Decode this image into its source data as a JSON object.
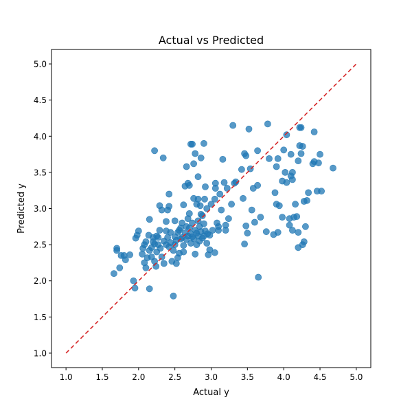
{
  "chart_data": {
    "type": "scatter",
    "title": "Actual vs Predicted",
    "xlabel": "Actual y",
    "ylabel": "Predicted y",
    "xlim": [
      0.8,
      5.2
    ],
    "ylim": [
      0.8,
      5.2
    ],
    "xticks": [
      "1.0",
      "1.5",
      "2.0",
      "2.5",
      "3.0",
      "3.5",
      "4.0",
      "4.5",
      "5.0"
    ],
    "yticks": [
      "1.0",
      "1.5",
      "2.0",
      "2.5",
      "3.0",
      "3.5",
      "4.0",
      "4.5",
      "5.0"
    ],
    "grid": false,
    "point_color": "#1f77b4",
    "reference_line": {
      "from": [
        1.0,
        1.0
      ],
      "to": [
        5.0,
        5.0
      ],
      "color": "#d62728",
      "style": "dashed"
    },
    "points": [
      [
        1.66,
        2.1
      ],
      [
        1.7,
        2.45
      ],
      [
        1.7,
        2.42
      ],
      [
        1.74,
        2.18
      ],
      [
        1.76,
        2.35
      ],
      [
        1.8,
        2.35
      ],
      [
        1.82,
        2.29
      ],
      [
        1.88,
        2.36
      ],
      [
        1.93,
        2.0
      ],
      [
        1.95,
        1.9
      ],
      [
        1.96,
        2.59
      ],
      [
        1.98,
        2.63
      ],
      [
        2.0,
        2.69
      ],
      [
        2.05,
        2.37
      ],
      [
        2.06,
        2.45
      ],
      [
        2.08,
        2.5
      ],
      [
        2.08,
        2.25
      ],
      [
        2.1,
        2.54
      ],
      [
        2.1,
        2.18
      ],
      [
        2.12,
        2.32
      ],
      [
        2.14,
        2.63
      ],
      [
        2.15,
        2.42
      ],
      [
        2.15,
        2.85
      ],
      [
        2.15,
        1.89
      ],
      [
        2.18,
        2.46
      ],
      [
        2.18,
        2.33
      ],
      [
        2.2,
        2.6
      ],
      [
        2.22,
        3.8
      ],
      [
        2.2,
        2.54
      ],
      [
        2.22,
        2.27
      ],
      [
        2.22,
        2.51
      ],
      [
        2.24,
        2.2
      ],
      [
        2.25,
        2.62
      ],
      [
        2.25,
        2.4
      ],
      [
        2.27,
        2.5
      ],
      [
        2.27,
        2.6
      ],
      [
        2.29,
        3.04
      ],
      [
        2.29,
        2.7
      ],
      [
        2.3,
        2.45
      ],
      [
        2.32,
        2.33
      ],
      [
        2.32,
        2.98
      ],
      [
        2.34,
        3.7
      ],
      [
        2.35,
        2.55
      ],
      [
        2.35,
        2.24
      ],
      [
        2.38,
        2.69
      ],
      [
        2.38,
        2.5
      ],
      [
        2.38,
        2.82
      ],
      [
        2.4,
        2.98
      ],
      [
        2.4,
        2.6
      ],
      [
        2.42,
        3.2
      ],
      [
        2.42,
        3.03
      ],
      [
        2.42,
        2.47
      ],
      [
        2.44,
        2.53
      ],
      [
        2.44,
        2.67
      ],
      [
        2.46,
        2.27
      ],
      [
        2.48,
        2.42
      ],
      [
        2.48,
        1.79
      ],
      [
        2.5,
        2.61
      ],
      [
        2.5,
        2.83
      ],
      [
        2.5,
        2.5
      ],
      [
        2.52,
        2.24
      ],
      [
        2.52,
        2.56
      ],
      [
        2.54,
        2.67
      ],
      [
        2.54,
        2.32
      ],
      [
        2.56,
        2.7
      ],
      [
        2.56,
        2.38
      ],
      [
        2.58,
        2.73
      ],
      [
        2.58,
        2.58
      ],
      [
        2.6,
        2.8
      ],
      [
        2.6,
        2.6
      ],
      [
        2.62,
        3.05
      ],
      [
        2.62,
        2.49
      ],
      [
        2.62,
        2.4
      ],
      [
        2.64,
        3.31
      ],
      [
        2.64,
        2.66
      ],
      [
        2.66,
        2.75
      ],
      [
        2.66,
        2.57
      ],
      [
        2.66,
        3.58
      ],
      [
        2.68,
        3.35
      ],
      [
        2.68,
        2.86
      ],
      [
        2.68,
        2.62
      ],
      [
        2.7,
        2.93
      ],
      [
        2.7,
        2.73
      ],
      [
        2.7,
        3.32
      ],
      [
        2.72,
        2.65
      ],
      [
        2.72,
        2.52
      ],
      [
        2.72,
        3.89
      ],
      [
        2.74,
        3.89
      ],
      [
        2.74,
        2.8
      ],
      [
        2.74,
        2.61
      ],
      [
        2.76,
        3.14
      ],
      [
        2.76,
        2.58
      ],
      [
        2.76,
        3.62
      ],
      [
        2.78,
        2.7
      ],
      [
        2.78,
        2.37
      ],
      [
        2.78,
        3.76
      ],
      [
        2.8,
        2.5
      ],
      [
        2.8,
        2.66
      ],
      [
        2.8,
        3.06
      ],
      [
        2.82,
        2.83
      ],
      [
        2.82,
        2.62
      ],
      [
        2.82,
        3.44
      ],
      [
        2.82,
        3.13
      ],
      [
        2.84,
        2.75
      ],
      [
        2.84,
        2.55
      ],
      [
        2.85,
        3.04
      ],
      [
        2.86,
        2.92
      ],
      [
        2.86,
        2.68
      ],
      [
        2.86,
        3.7
      ],
      [
        2.88,
        2.59
      ],
      [
        2.88,
        2.9
      ],
      [
        2.9,
        2.79
      ],
      [
        2.9,
        2.62
      ],
      [
        2.9,
        3.9
      ],
      [
        2.91,
        3.13
      ],
      [
        2.92,
        3.3
      ],
      [
        2.92,
        2.69
      ],
      [
        2.94,
        2.52
      ],
      [
        2.94,
        3.0
      ],
      [
        2.95,
        2.65
      ],
      [
        2.96,
        2.36
      ],
      [
        2.98,
        2.43
      ],
      [
        2.98,
        2.63
      ],
      [
        3.0,
        3.06
      ],
      [
        3.02,
        2.7
      ],
      [
        3.05,
        3.13
      ],
      [
        3.05,
        2.39
      ],
      [
        3.06,
        3.28
      ],
      [
        3.06,
        3.35
      ],
      [
        3.08,
        2.8
      ],
      [
        3.1,
        2.75
      ],
      [
        3.1,
        2.7
      ],
      [
        3.12,
        3.2
      ],
      [
        3.14,
        2.98
      ],
      [
        3.16,
        3.68
      ],
      [
        3.18,
        3.36
      ],
      [
        3.2,
        2.77
      ],
      [
        3.2,
        2.7
      ],
      [
        3.22,
        3.28
      ],
      [
        3.24,
        2.86
      ],
      [
        3.28,
        3.06
      ],
      [
        3.3,
        4.15
      ],
      [
        3.32,
        3.35
      ],
      [
        3.34,
        3.37
      ],
      [
        3.42,
        3.54
      ],
      [
        3.44,
        3.14
      ],
      [
        3.46,
        3.76
      ],
      [
        3.46,
        2.51
      ],
      [
        3.48,
        3.73
      ],
      [
        3.48,
        2.76
      ],
      [
        3.5,
        2.66
      ],
      [
        3.52,
        4.1
      ],
      [
        3.54,
        3.55
      ],
      [
        3.56,
        2.98
      ],
      [
        3.58,
        3.28
      ],
      [
        3.6,
        2.81
      ],
      [
        3.64,
        3.32
      ],
      [
        3.64,
        3.8
      ],
      [
        3.65,
        2.05
      ],
      [
        3.68,
        2.88
      ],
      [
        3.76,
        2.68
      ],
      [
        3.78,
        4.17
      ],
      [
        3.8,
        3.69
      ],
      [
        3.86,
        2.64
      ],
      [
        3.88,
        3.22
      ],
      [
        3.9,
        3.58
      ],
      [
        3.9,
        3.06
      ],
      [
        3.92,
        2.67
      ],
      [
        3.92,
        3.69
      ],
      [
        3.94,
        3.04
      ],
      [
        3.98,
        3.38
      ],
      [
        3.98,
        2.88
      ],
      [
        4.0,
        3.81
      ],
      [
        4.02,
        3.5
      ],
      [
        4.04,
        4.02
      ],
      [
        4.04,
        3.36
      ],
      [
        4.08,
        2.86
      ],
      [
        4.08,
        2.77
      ],
      [
        4.1,
        3.75
      ],
      [
        4.1,
        3.45
      ],
      [
        4.12,
        2.7
      ],
      [
        4.12,
        3.5
      ],
      [
        4.12,
        3.4
      ],
      [
        4.14,
        2.88
      ],
      [
        4.16,
        3.06
      ],
      [
        4.18,
        2.89
      ],
      [
        4.2,
        3.66
      ],
      [
        4.2,
        2.67
      ],
      [
        4.2,
        2.46
      ],
      [
        4.22,
        4.12
      ],
      [
        4.22,
        3.87
      ],
      [
        4.24,
        3.76
      ],
      [
        4.24,
        4.12
      ],
      [
        4.26,
        3.86
      ],
      [
        4.26,
        2.5
      ],
      [
        4.28,
        3.1
      ],
      [
        4.28,
        2.54
      ],
      [
        4.3,
        2.75
      ],
      [
        4.32,
        3.11
      ],
      [
        4.34,
        3.22
      ],
      [
        4.4,
        3.62
      ],
      [
        4.42,
        4.06
      ],
      [
        4.42,
        3.65
      ],
      [
        4.46,
        3.24
      ],
      [
        4.48,
        3.63
      ],
      [
        4.5,
        3.75
      ],
      [
        4.52,
        3.24
      ],
      [
        4.68,
        3.56
      ]
    ]
  }
}
